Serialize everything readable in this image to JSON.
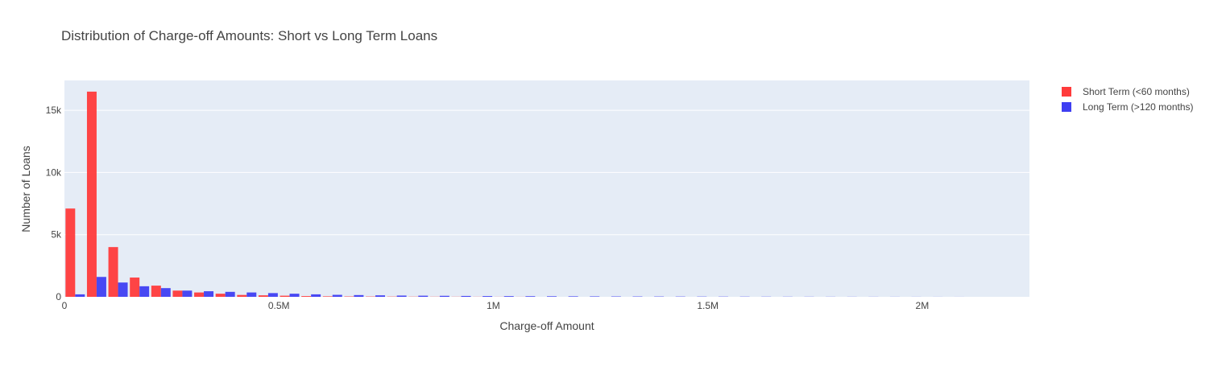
{
  "chart_data": {
    "type": "bar",
    "title": "Distribution of Charge-off Amounts: Short vs Long Term Loans",
    "xlabel": "Charge-off Amount",
    "ylabel": "Number of Loans",
    "xlim": [
      0,
      2250000
    ],
    "ylim": [
      0,
      17400
    ],
    "x_ticks": [
      {
        "value": 0,
        "label": "0"
      },
      {
        "value": 500000,
        "label": "0.5M"
      },
      {
        "value": 1000000,
        "label": "1M"
      },
      {
        "value": 1500000,
        "label": "1.5M"
      },
      {
        "value": 2000000,
        "label": "2M"
      }
    ],
    "y_ticks": [
      {
        "value": 0,
        "label": "0"
      },
      {
        "value": 5000,
        "label": "5k"
      },
      {
        "value": 10000,
        "label": "10k"
      },
      {
        "value": 15000,
        "label": "15k"
      }
    ],
    "bin_width": 50000,
    "grid": true,
    "legend_position": "top-right",
    "background_color": "#e5ecf6",
    "series": [
      {
        "name": "Short Term (<60 months)",
        "color": "#ff3b3b",
        "x": [
          0,
          50000,
          100000,
          150000,
          200000,
          250000,
          300000,
          350000,
          400000,
          450000,
          500000,
          550000,
          600000,
          650000,
          700000,
          750000,
          800000,
          850000,
          900000,
          950000,
          1000000,
          1050000
        ],
        "values": [
          7100,
          16500,
          4000,
          1550,
          900,
          500,
          350,
          250,
          150,
          120,
          90,
          60,
          40,
          30,
          25,
          20,
          15,
          12,
          10,
          8,
          6,
          5
        ]
      },
      {
        "name": "Long Term (>120 months)",
        "color": "#3f3ff2",
        "x": [
          0,
          50000,
          100000,
          150000,
          200000,
          250000,
          300000,
          350000,
          400000,
          450000,
          500000,
          550000,
          600000,
          650000,
          700000,
          750000,
          800000,
          850000,
          900000,
          950000,
          1000000,
          1050000,
          1100000,
          1150000,
          1200000,
          1250000,
          1300000,
          1350000,
          1400000,
          1450000,
          1500000,
          1550000,
          1600000,
          1650000,
          1700000,
          1750000,
          1800000,
          1850000,
          1900000,
          1950000,
          2000000,
          2050000
        ],
        "values": [
          200,
          1600,
          1150,
          850,
          700,
          500,
          450,
          400,
          350,
          300,
          250,
          200,
          160,
          140,
          120,
          100,
          90,
          80,
          70,
          60,
          55,
          50,
          45,
          40,
          35,
          30,
          28,
          25,
          22,
          20,
          18,
          16,
          14,
          12,
          10,
          9,
          8,
          7,
          6,
          5,
          4,
          3
        ]
      }
    ]
  }
}
